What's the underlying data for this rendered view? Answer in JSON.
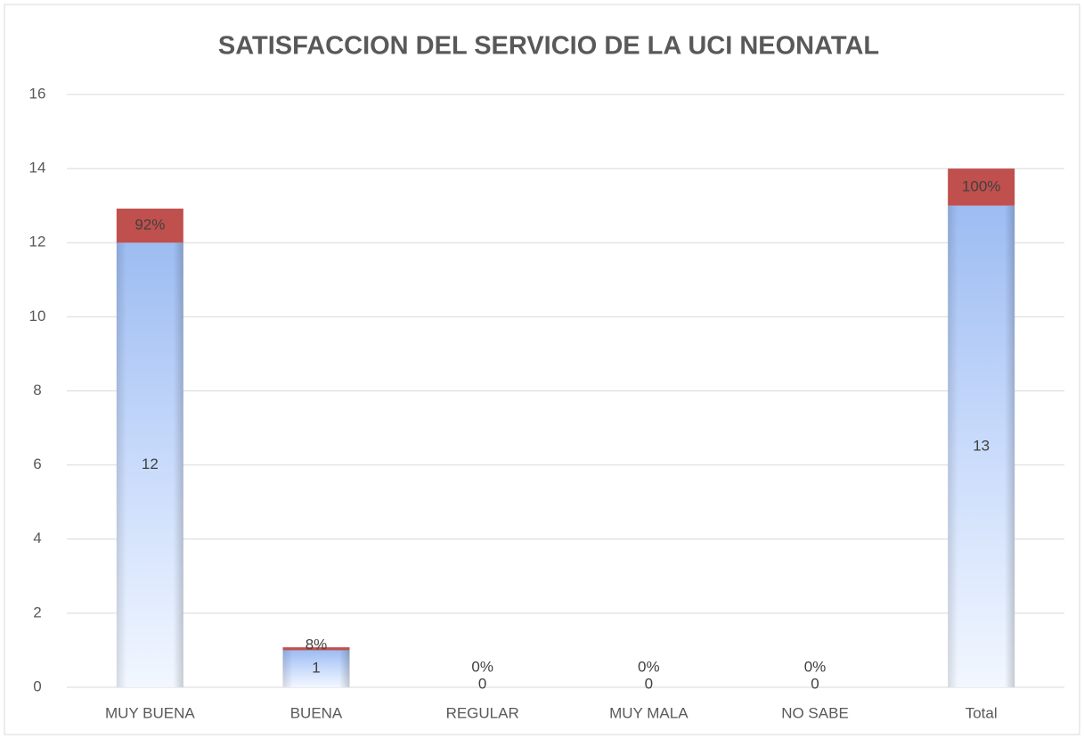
{
  "chart_data": {
    "type": "stacked_bar",
    "title": "SATISFACCION DEL SERVICIO DE LA UCI NEONATAL",
    "categories": [
      "MUY BUENA",
      "BUENA",
      "REGULAR",
      "MUY MALA",
      "NO SABE",
      "Total"
    ],
    "series": [
      {
        "color": "#a9c4f5",
        "values": [
          12,
          1,
          0,
          0,
          0,
          13
        ]
      },
      {
        "color": "#c0504d",
        "values": [
          0.92,
          0.08,
          0,
          0,
          0,
          1
        ],
        "value_labels": [
          "92%",
          "8%",
          "0%",
          "0%",
          "0%",
          "100%"
        ]
      }
    ],
    "ylim": [
      0,
      16
    ],
    "yticks": [
      0,
      2,
      4,
      6,
      8,
      10,
      12,
      14,
      16
    ],
    "grid": true
  }
}
